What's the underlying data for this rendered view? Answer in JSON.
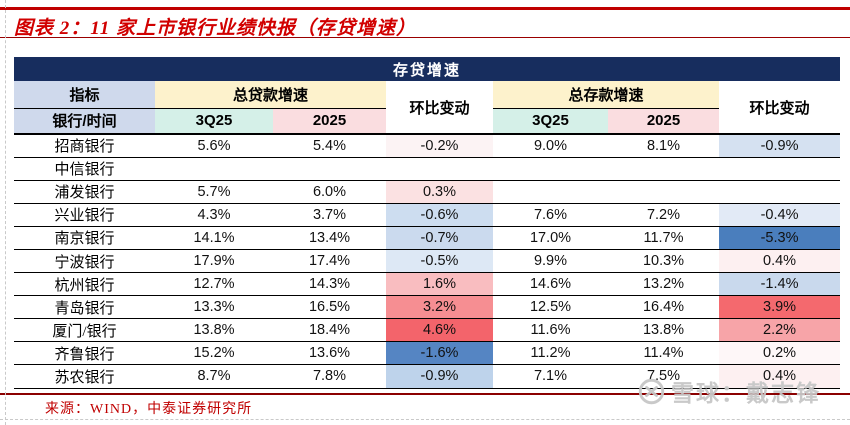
{
  "title": "图表 2：11 家上市银行业绩快报（存贷增速）",
  "table": {
    "banner": "存贷增速",
    "header": {
      "indicator": "指标",
      "bank_time": "银行/时间",
      "loan_group": "总贷款增速",
      "deposit_group": "总存款增速",
      "qoq": "环比变动",
      "q3_25": "3Q25",
      "y2025": "2025"
    },
    "rows": [
      {
        "bank": "招商银行",
        "loan_3q25": "5.6%",
        "loan_2025": "5.4%",
        "loan_qoq": "-0.2%",
        "loan_qoq_bg": "#fcf3f4",
        "dep_3q25": "9.0%",
        "dep_2025": "8.1%",
        "dep_qoq": "-0.9%",
        "dep_qoq_bg": "#d5e1f1"
      },
      {
        "bank": "中信银行",
        "loan_3q25": "",
        "loan_2025": "",
        "loan_qoq": "",
        "loan_qoq_bg": "#ffffff",
        "dep_3q25": "",
        "dep_2025": "",
        "dep_qoq": "",
        "dep_qoq_bg": "#ffffff"
      },
      {
        "bank": "浦发银行",
        "loan_3q25": "5.7%",
        "loan_2025": "6.0%",
        "loan_qoq": "0.3%",
        "loan_qoq_bg": "#fbe1e2",
        "dep_3q25": "",
        "dep_2025": "",
        "dep_qoq": "",
        "dep_qoq_bg": "#ffffff"
      },
      {
        "bank": "兴业银行",
        "loan_3q25": "4.3%",
        "loan_2025": "3.7%",
        "loan_qoq": "-0.6%",
        "loan_qoq_bg": "#cdddf0",
        "dep_3q25": "7.6%",
        "dep_2025": "7.2%",
        "dep_qoq": "-0.4%",
        "dep_qoq_bg": "#e2eaf6"
      },
      {
        "bank": "南京银行",
        "loan_3q25": "14.1%",
        "loan_2025": "13.4%",
        "loan_qoq": "-0.7%",
        "loan_qoq_bg": "#cbdaee",
        "dep_3q25": "17.0%",
        "dep_2025": "11.7%",
        "dep_qoq": "-5.3%",
        "dep_qoq_bg": "#4a7ebd"
      },
      {
        "bank": "宁波银行",
        "loan_3q25": "17.9%",
        "loan_2025": "17.4%",
        "loan_qoq": "-0.5%",
        "loan_qoq_bg": "#dde8f5",
        "dep_3q25": "9.9%",
        "dep_2025": "10.3%",
        "dep_qoq": "0.4%",
        "dep_qoq_bg": "#fdf0f1"
      },
      {
        "bank": "杭州银行",
        "loan_3q25": "12.7%",
        "loan_2025": "14.3%",
        "loan_qoq": "1.6%",
        "loan_qoq_bg": "#f9bdc0",
        "dep_3q25": "14.6%",
        "dep_2025": "13.2%",
        "dep_qoq": "-1.4%",
        "dep_qoq_bg": "#c9d9ed"
      },
      {
        "bank": "青岛银行",
        "loan_3q25": "13.3%",
        "loan_2025": "16.5%",
        "loan_qoq": "3.2%",
        "loan_qoq_bg": "#f68e92",
        "dep_3q25": "12.5%",
        "dep_2025": "16.4%",
        "dep_qoq": "3.9%",
        "dep_qoq_bg": "#f4696e"
      },
      {
        "bank": "厦门/银行",
        "loan_3q25": "13.8%",
        "loan_2025": "18.4%",
        "loan_qoq": "4.6%",
        "loan_qoq_bg": "#f3646b",
        "dep_3q25": "11.6%",
        "dep_2025": "13.8%",
        "dep_qoq": "2.2%",
        "dep_qoq_bg": "#f7a4a8"
      },
      {
        "bank": "齐鲁银行",
        "loan_3q25": "15.2%",
        "loan_2025": "13.6%",
        "loan_qoq": "-1.6%",
        "loan_qoq_bg": "#5585c3",
        "dep_3q25": "11.2%",
        "dep_2025": "11.4%",
        "dep_qoq": "0.2%",
        "dep_qoq_bg": "#fef7f8"
      },
      {
        "bank": "苏农银行",
        "loan_3q25": "8.7%",
        "loan_2025": "7.8%",
        "loan_qoq": "-0.9%",
        "loan_qoq_bg": "#bed3eb",
        "dep_3q25": "7.1%",
        "dep_2025": "7.5%",
        "dep_qoq": "0.4%",
        "dep_qoq_bg": "#fdf0f1"
      }
    ]
  },
  "source": "来源：WIND，中泰证券研究所",
  "watermark": {
    "text": "雪球：戴志锋"
  },
  "colors": {
    "accent_red": "#c00000",
    "dark_red_rule": "#8b0000",
    "banner_navy": "#172d5e",
    "header_lavender": "#cfd9ec",
    "header_yellow": "#fdf2cc",
    "header_mint": "#d5f0e8",
    "header_pink": "#fadde0",
    "positive_scale_max": "#f3646b",
    "negative_scale_max": "#4a7ebd"
  }
}
